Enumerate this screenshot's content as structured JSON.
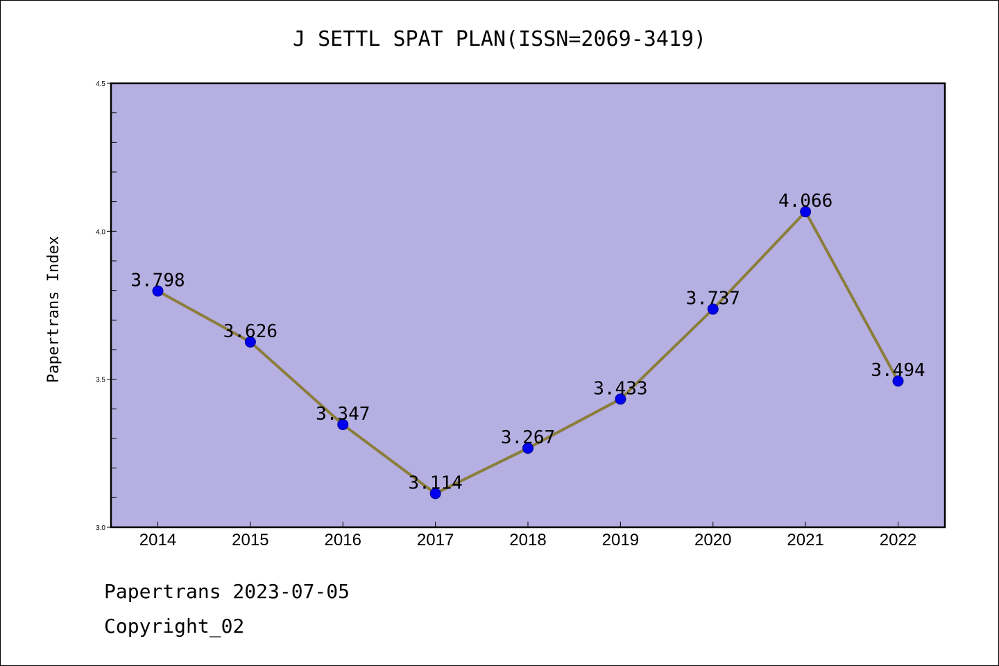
{
  "chart_data": {
    "type": "line",
    "title": "J SETTL SPAT PLAN(ISSN=2069-3419)",
    "ylabel": "Papertrans Index",
    "xlabel": "",
    "categories": [
      "2014",
      "2015",
      "2016",
      "2017",
      "2018",
      "2019",
      "2020",
      "2021",
      "2022"
    ],
    "series": [
      {
        "values": [
          3.798,
          3.626,
          3.347,
          3.114,
          3.267,
          3.433,
          3.737,
          4.066,
          3.494
        ],
        "labels": [
          "3.798",
          "3.626",
          "3.347",
          "3.114",
          "3.267",
          "3.433",
          "3.737",
          "4.066",
          "3.494"
        ]
      }
    ],
    "ylim": [
      3.0,
      4.5
    ],
    "ytick_labels": [
      "3.0",
      "3.5",
      "4.0",
      "4.5"
    ],
    "ytick_values": [
      3.0,
      3.5,
      4.0,
      4.5
    ],
    "grid": false,
    "colors": {
      "plot_background": "#b5afe2",
      "line": "#8b7d3a",
      "marker": "#0000ee",
      "marker_edge": "#00008b"
    }
  },
  "footer": {
    "line1": "Papertrans 2023-07-05",
    "line2": "Copyright_02"
  }
}
